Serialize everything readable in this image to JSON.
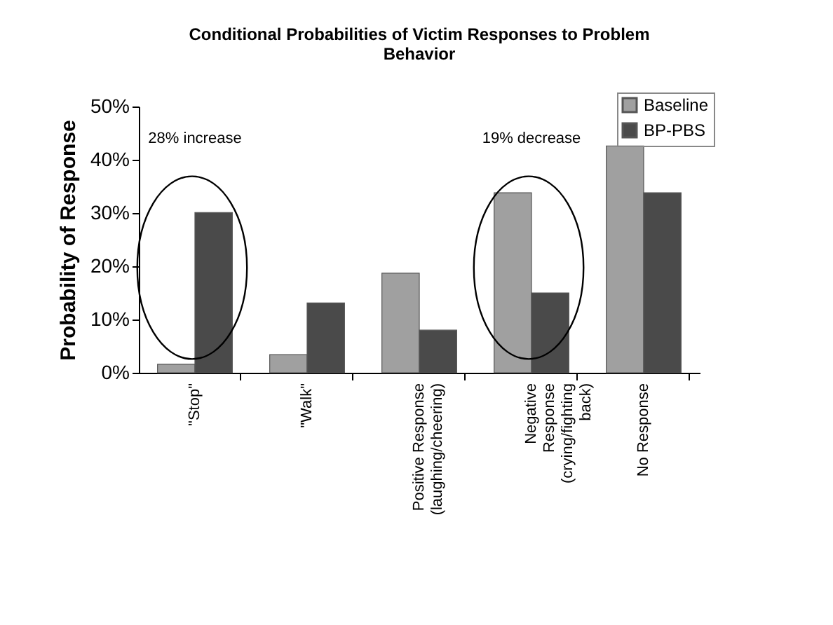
{
  "chart_data": {
    "type": "bar",
    "title": [
      "Conditional Probabilities of Victim Responses to Problem",
      "Behavior"
    ],
    "ylabel": "Probability of Response",
    "categories": [
      "\"Stop\"",
      "\"Walk\"",
      "Positive Response\n(laughing/cheering)",
      "Negative\nResponse\n(crying/fighting\nback)",
      "No Response"
    ],
    "series": [
      {
        "name": "Baseline",
        "color": "#a0a0a0",
        "values": [
          1.6,
          3.4,
          18.7,
          33.8,
          42.6
        ]
      },
      {
        "name": "BP-PBS",
        "color": "#4a4a4a",
        "values": [
          30.1,
          13.1,
          8.0,
          15.0,
          33.8
        ]
      }
    ],
    "ylim": [
      0,
      50
    ],
    "yticks": [
      {
        "value": 0,
        "label": "0%"
      },
      {
        "value": 10,
        "label": "10%"
      },
      {
        "value": 20,
        "label": "20%"
      },
      {
        "value": 30,
        "label": "30%"
      },
      {
        "value": 40,
        "label": "40%"
      },
      {
        "value": 50,
        "label": "50%"
      }
    ],
    "annotations": [
      "28% increase",
      "19% decrease"
    ],
    "grid": false,
    "legend": "top right"
  }
}
